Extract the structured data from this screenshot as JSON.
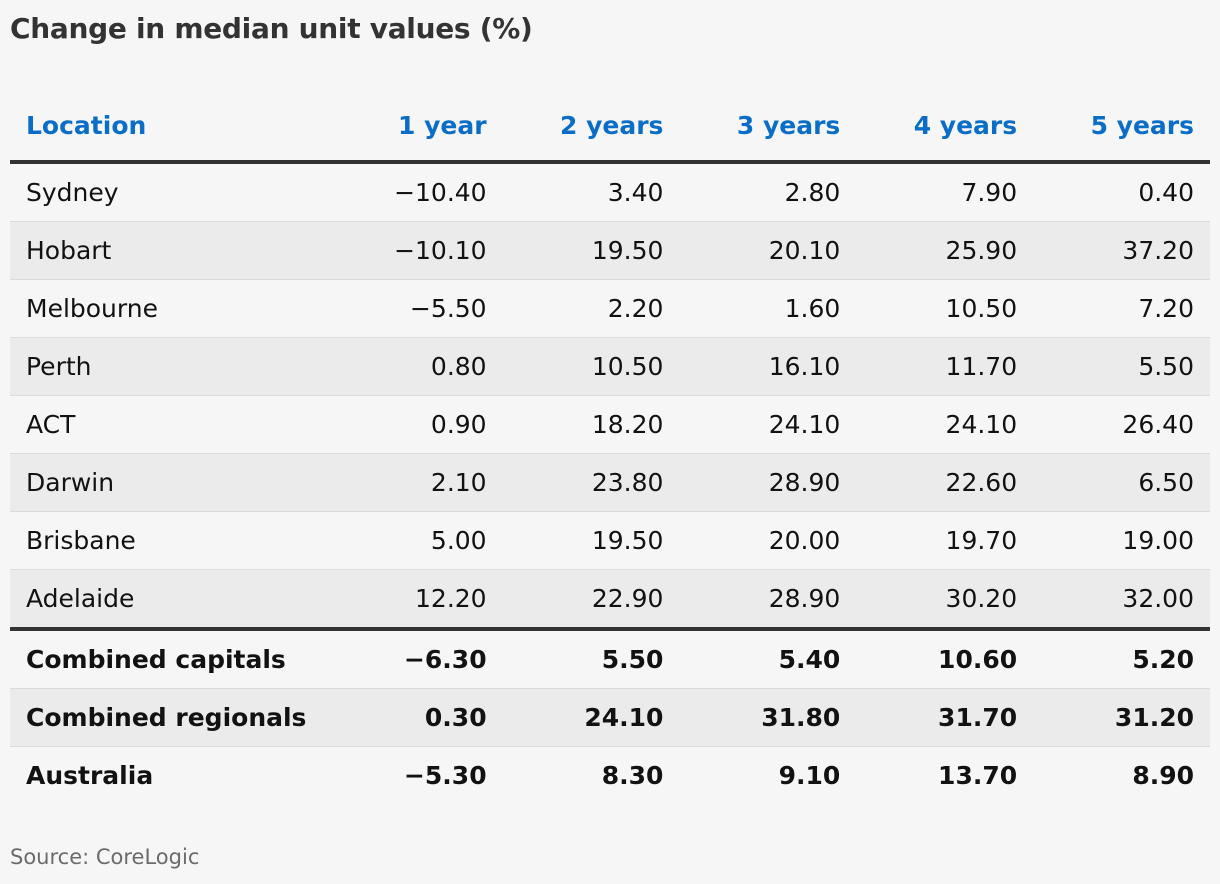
{
  "title": "Change in median unit values (%)",
  "source": "Source: CoreLogic",
  "chart_data": {
    "type": "table",
    "title": "Change in median unit values (%)",
    "columns": [
      "Location",
      "1 year",
      "2 years",
      "3 years",
      "4 years",
      "5 years"
    ],
    "rows": [
      [
        "Sydney",
        "−10.40",
        "3.40",
        "2.80",
        "7.90",
        "0.40"
      ],
      [
        "Hobart",
        "−10.10",
        "19.50",
        "20.10",
        "25.90",
        "37.20"
      ],
      [
        "Melbourne",
        "−5.50",
        "2.20",
        "1.60",
        "10.50",
        "7.20"
      ],
      [
        "Perth",
        "0.80",
        "10.50",
        "16.10",
        "11.70",
        "5.50"
      ],
      [
        "ACT",
        "0.90",
        "18.20",
        "24.10",
        "24.10",
        "26.40"
      ],
      [
        "Darwin",
        "2.10",
        "23.80",
        "28.90",
        "22.60",
        "6.50"
      ],
      [
        "Brisbane",
        "5.00",
        "19.50",
        "20.00",
        "19.70",
        "19.00"
      ],
      [
        "Adelaide",
        "12.20",
        "22.90",
        "28.90",
        "30.20",
        "32.00"
      ]
    ],
    "summary_rows": [
      [
        "Combined capitals",
        "−6.30",
        "5.50",
        "5.40",
        "10.60",
        "5.20"
      ],
      [
        "Combined regionals",
        "0.30",
        "24.10",
        "31.80",
        "31.70",
        "31.20"
      ],
      [
        "Australia",
        "−5.30",
        "8.30",
        "9.10",
        "13.70",
        "8.90"
      ]
    ],
    "header_color": "#0a6ec8",
    "stripe_color": "#ebebeb",
    "background_color": "#f6f6f6"
  }
}
